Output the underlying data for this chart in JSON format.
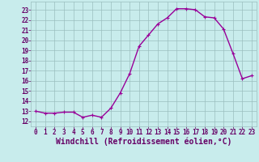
{
  "x": [
    0,
    1,
    2,
    3,
    4,
    5,
    6,
    7,
    8,
    9,
    10,
    11,
    12,
    13,
    14,
    15,
    16,
    17,
    18,
    19,
    20,
    21,
    22,
    23
  ],
  "y": [
    13.0,
    12.8,
    12.8,
    12.9,
    12.9,
    12.4,
    12.6,
    12.4,
    13.3,
    14.8,
    16.7,
    19.4,
    20.5,
    21.6,
    22.2,
    23.1,
    23.1,
    23.0,
    22.3,
    22.2,
    21.1,
    18.7,
    16.2,
    16.5
  ],
  "line_color": "#990099",
  "marker": "+",
  "marker_size": 3,
  "xlabel": "Windchill (Refroidissement éolien,°C)",
  "xlim": [
    -0.5,
    23.5
  ],
  "ylim": [
    11.5,
    23.8
  ],
  "yticks": [
    12,
    13,
    14,
    15,
    16,
    17,
    18,
    19,
    20,
    21,
    22,
    23
  ],
  "xticks": [
    0,
    1,
    2,
    3,
    4,
    5,
    6,
    7,
    8,
    9,
    10,
    11,
    12,
    13,
    14,
    15,
    16,
    17,
    18,
    19,
    20,
    21,
    22,
    23
  ],
  "background_color": "#c8ecec",
  "grid_color": "#9bbfbf",
  "line_color_spine": "#9bbfbf",
  "tick_color": "#660066",
  "xlabel_color": "#660066",
  "tick_fontsize": 5.5,
  "xlabel_fontsize": 7.0,
  "linewidth": 1.0,
  "markeredgewidth": 0.8
}
